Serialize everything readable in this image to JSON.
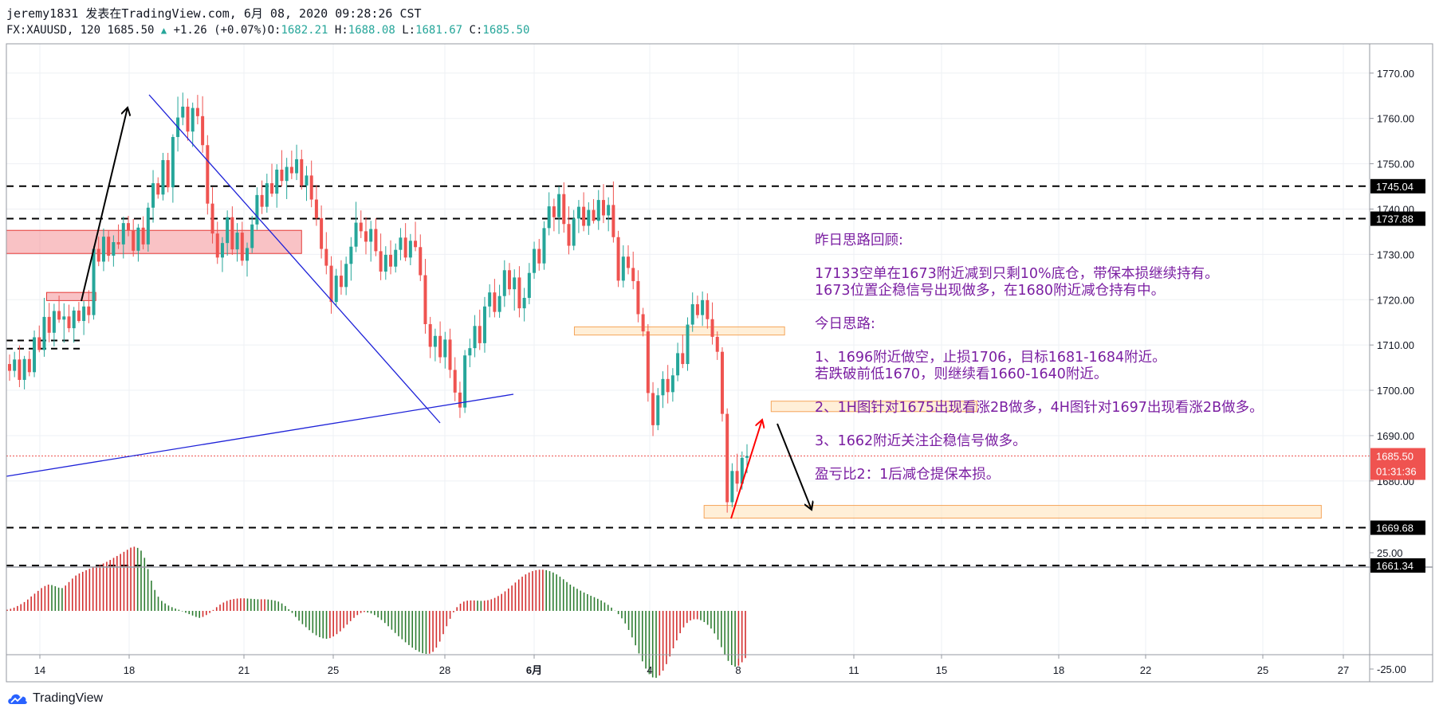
{
  "header": {
    "line1": "jeremy1831 发表在TradingView.com, 6月 08, 2020 09:28:26 CST",
    "symbol": "FX:XAUUSD, 120",
    "last": "1685.50",
    "change": "+1.26 (+0.07%)",
    "o_label": "O:",
    "o": "1682.21",
    "h_label": "H:",
    "h": "1688.08",
    "l_label": "L:",
    "l": "1681.67",
    "c_label": "C:",
    "c": "1685.50"
  },
  "branding": {
    "logo_text": "TradingView"
  },
  "notes": {
    "title": "昨日思路回顾:",
    "p1a": "17133空单在1673附近减到只剩10%底仓，带保本损继续持有。",
    "p1b": "1673位置企稳信号出现做多，在1680附近减仓持有中。",
    "today": "今日思路:",
    "i1a": "1、1696附近做空，止损1706，目标1681-1684附近。",
    "i1b": "若跌破前低1670，则继续看1660-1640附近。",
    "i2": "2、1H图针对1675出现看涨2B做多，4H图针对1697出现看涨2B做多。",
    "i3": "3、1662附近关注企稳信号做多。",
    "rr": "盈亏比2：1后减仓提保本损。"
  },
  "colors": {
    "up": "#26a69a",
    "down": "#ef5350",
    "osc_up": "#d32f2f",
    "osc_down": "#2e7d32",
    "line_blue": "#1e22d8",
    "notes": "#7b1fa2"
  },
  "chart_data": {
    "type": "candlestick",
    "symbol": "FX:XAUUSD",
    "interval": "120",
    "y_axis": {
      "ticks": [
        1770,
        1760,
        1750,
        1740,
        1730,
        1720,
        1710,
        1700,
        1690,
        1680
      ],
      "tick_labels": [
        "1770.00",
        "1760.00",
        "1750.00",
        "1740.00",
        "1730.00",
        "1720.00",
        "1710.00",
        "1700.00",
        "1690.00",
        "1680.00"
      ],
      "ylim": [
        1661,
        1778
      ]
    },
    "x_axis": {
      "ticks": [
        "14",
        "18",
        "21",
        "25",
        "28",
        "6月",
        "4",
        "8",
        "11",
        "15",
        "18",
        "22",
        "25",
        "27"
      ]
    },
    "horizontal_levels": [
      {
        "value": 1745.04,
        "label": "1745.04",
        "style": "dashed"
      },
      {
        "value": 1737.88,
        "label": "1737.88",
        "style": "dashed"
      },
      {
        "value": 1669.68,
        "label": "1669.68",
        "style": "dashed"
      },
      {
        "value": 1661.34,
        "label": "1661.34",
        "style": "dashed"
      },
      {
        "value": 1711.0,
        "label": "",
        "style": "dashed-short"
      },
      {
        "value": 1709.2,
        "label": "",
        "style": "dashed-short"
      }
    ],
    "current_price": {
      "value": 1685.5,
      "label": "1685.50",
      "countdown": "01:31:36"
    },
    "zones": [
      {
        "t0": 0,
        "t1": 66,
        "low": 1730.2,
        "high": 1735.3,
        "color": "red"
      },
      {
        "t0": 9,
        "t1": 20,
        "low": 1719.8,
        "high": 1721.6,
        "color": "red"
      },
      {
        "t0": 127,
        "t1": 174,
        "low": 1712.2,
        "high": 1714.0,
        "color": "orange"
      },
      {
        "t0": 171,
        "t1": 217,
        "low": 1695.3,
        "high": 1697.6,
        "color": "orange"
      },
      {
        "t0": 156,
        "t1": 294,
        "low": 1671.8,
        "high": 1674.6,
        "color": "orange"
      }
    ],
    "candles_ohlc": [
      [
        1705.8,
        1707.9,
        1702.1,
        1704.3
      ],
      [
        1704.3,
        1708.5,
        1702.9,
        1706.8
      ],
      [
        1706.8,
        1709.9,
        1700.7,
        1702.3
      ],
      [
        1702.3,
        1707.6,
        1700.2,
        1706.9
      ],
      [
        1706.9,
        1708.7,
        1703.1,
        1704.0
      ],
      [
        1704.0,
        1713.2,
        1702.9,
        1711.7
      ],
      [
        1711.7,
        1714.3,
        1708.4,
        1708.9
      ],
      [
        1708.9,
        1720.4,
        1707.4,
        1716.2
      ],
      [
        1716.2,
        1719.3,
        1710.6,
        1712.7
      ],
      [
        1712.7,
        1719.1,
        1709.7,
        1717.5
      ],
      [
        1717.5,
        1720.9,
        1714.9,
        1715.6
      ],
      [
        1715.6,
        1719.2,
        1710.5,
        1716.3
      ],
      [
        1716.3,
        1718.9,
        1712.8,
        1713.7
      ],
      [
        1713.7,
        1718.4,
        1710.5,
        1717.6
      ],
      [
        1717.6,
        1719.5,
        1714.9,
        1715.3
      ],
      [
        1715.3,
        1719.7,
        1712.2,
        1718.5
      ],
      [
        1718.5,
        1722.1,
        1714.8,
        1716.6
      ],
      [
        1716.6,
        1731.8,
        1715.6,
        1731.2
      ],
      [
        1731.2,
        1733.9,
        1727.4,
        1728.4
      ],
      [
        1728.4,
        1735.7,
        1726.3,
        1733.9
      ],
      [
        1733.9,
        1735.2,
        1728.4,
        1729.7
      ],
      [
        1729.7,
        1734.2,
        1727.3,
        1732.7
      ],
      [
        1732.7,
        1736.6,
        1731.2,
        1732.2
      ],
      [
        1732.2,
        1738.3,
        1729.1,
        1736.9
      ],
      [
        1736.9,
        1738.5,
        1734.0,
        1735.2
      ],
      [
        1735.2,
        1737.8,
        1729.5,
        1730.8
      ],
      [
        1730.8,
        1736.7,
        1728.4,
        1735.9
      ],
      [
        1735.9,
        1738.4,
        1731.1,
        1732.2
      ],
      [
        1732.2,
        1741.4,
        1730.6,
        1740.3
      ],
      [
        1740.3,
        1748.6,
        1737.0,
        1745.7
      ],
      [
        1745.7,
        1747.0,
        1742.3,
        1743.2
      ],
      [
        1743.2,
        1752.4,
        1741.9,
        1750.8
      ],
      [
        1750.8,
        1752.4,
        1743.7,
        1744.8
      ],
      [
        1744.8,
        1756.5,
        1741.4,
        1755.9
      ],
      [
        1755.9,
        1764.8,
        1752.7,
        1760.2
      ],
      [
        1760.2,
        1765.7,
        1758.5,
        1762.6
      ],
      [
        1762.6,
        1764.4,
        1755.1,
        1757.1
      ],
      [
        1757.1,
        1763.5,
        1753.7,
        1762.3
      ],
      [
        1762.3,
        1765.2,
        1758.7,
        1760.5
      ],
      [
        1760.5,
        1764.9,
        1752.4,
        1754.1
      ],
      [
        1754.1,
        1756.3,
        1738.8,
        1741.2
      ],
      [
        1741.2,
        1744.8,
        1732.4,
        1734.6
      ],
      [
        1734.6,
        1737.2,
        1727.9,
        1729.3
      ],
      [
        1729.3,
        1733.8,
        1726.1,
        1732.5
      ],
      [
        1732.5,
        1739.7,
        1729.7,
        1738.2
      ],
      [
        1738.2,
        1740.6,
        1729.9,
        1731.1
      ],
      [
        1731.1,
        1736.9,
        1728.4,
        1734.8
      ],
      [
        1734.8,
        1737.2,
        1727.5,
        1728.6
      ],
      [
        1728.6,
        1732.6,
        1725.1,
        1731.4
      ],
      [
        1731.4,
        1738.5,
        1730.3,
        1736.6
      ],
      [
        1736.6,
        1744.8,
        1735.4,
        1743.1
      ],
      [
        1743.1,
        1746.3,
        1738.9,
        1740.5
      ],
      [
        1740.5,
        1747.8,
        1739.2,
        1745.7
      ],
      [
        1745.7,
        1750.0,
        1742.7,
        1743.4
      ],
      [
        1743.4,
        1749.9,
        1740.3,
        1748.7
      ],
      [
        1748.7,
        1753.0,
        1745.0,
        1746.2
      ],
      [
        1746.2,
        1751.3,
        1742.2,
        1749.3
      ],
      [
        1749.3,
        1752.9,
        1746.6,
        1747.9
      ],
      [
        1747.9,
        1754.2,
        1746.4,
        1751.0
      ],
      [
        1751.0,
        1753.1,
        1744.3,
        1745.2
      ],
      [
        1745.2,
        1749.5,
        1741.8,
        1747.4
      ],
      [
        1747.4,
        1750.7,
        1740.4,
        1742.1
      ],
      [
        1742.1,
        1745.3,
        1736.3,
        1738.0
      ],
      [
        1738.0,
        1740.8,
        1729.1,
        1731.2
      ],
      [
        1731.2,
        1734.9,
        1725.6,
        1727.5
      ],
      [
        1727.5,
        1729.6,
        1716.9,
        1719.5
      ],
      [
        1719.5,
        1726.8,
        1718.5,
        1725.3
      ],
      [
        1725.3,
        1728.7,
        1721.1,
        1722.8
      ],
      [
        1722.8,
        1729.5,
        1721.0,
        1727.9
      ],
      [
        1727.9,
        1733.8,
        1724.2,
        1731.7
      ],
      [
        1731.7,
        1741.6,
        1730.5,
        1737.0
      ],
      [
        1737.0,
        1739.7,
        1733.6,
        1735.1
      ],
      [
        1735.1,
        1738.2,
        1730.0,
        1732.8
      ],
      [
        1732.8,
        1737.4,
        1728.4,
        1735.6
      ],
      [
        1735.6,
        1738.0,
        1729.6,
        1730.7
      ],
      [
        1730.7,
        1734.6,
        1724.3,
        1726.2
      ],
      [
        1726.2,
        1731.8,
        1724.4,
        1729.9
      ],
      [
        1729.9,
        1733.1,
        1725.6,
        1727.3
      ],
      [
        1727.3,
        1732.4,
        1726.0,
        1731.0
      ],
      [
        1731.0,
        1735.8,
        1728.7,
        1733.7
      ],
      [
        1733.7,
        1736.9,
        1728.5,
        1729.3
      ],
      [
        1729.3,
        1734.5,
        1727.6,
        1733.0
      ],
      [
        1733.0,
        1737.2,
        1730.7,
        1731.6
      ],
      [
        1731.6,
        1734.4,
        1724.1,
        1725.4
      ],
      [
        1725.4,
        1729.0,
        1712.5,
        1714.6
      ],
      [
        1714.6,
        1716.2,
        1707.1,
        1709.6
      ],
      [
        1709.6,
        1713.6,
        1706.4,
        1712.0
      ],
      [
        1712.0,
        1715.2,
        1706.0,
        1707.3
      ],
      [
        1707.3,
        1712.9,
        1704.8,
        1711.2
      ],
      [
        1711.2,
        1713.6,
        1702.7,
        1704.5
      ],
      [
        1704.5,
        1707.3,
        1697.6,
        1699.5
      ],
      [
        1699.5,
        1701.9,
        1693.9,
        1696.2
      ],
      [
        1696.2,
        1708.9,
        1695.0,
        1707.7
      ],
      [
        1707.7,
        1711.4,
        1705.1,
        1709.3
      ],
      [
        1709.3,
        1716.6,
        1707.3,
        1714.2
      ],
      [
        1714.2,
        1717.8,
        1708.9,
        1710.4
      ],
      [
        1710.4,
        1720.6,
        1708.3,
        1718.5
      ],
      [
        1718.5,
        1723.4,
        1716.1,
        1721.6
      ],
      [
        1721.6,
        1724.6,
        1716.1,
        1717.3
      ],
      [
        1717.3,
        1723.3,
        1716.0,
        1720.8
      ],
      [
        1720.8,
        1728.7,
        1718.4,
        1726.5
      ],
      [
        1726.5,
        1728.1,
        1721.0,
        1722.3
      ],
      [
        1722.3,
        1726.7,
        1717.6,
        1724.9
      ],
      [
        1724.9,
        1727.4,
        1716.1,
        1718.1
      ],
      [
        1718.1,
        1722.6,
        1715.2,
        1720.4
      ],
      [
        1720.4,
        1728.1,
        1719.0,
        1725.9
      ],
      [
        1725.9,
        1732.8,
        1724.6,
        1731.2
      ],
      [
        1731.2,
        1733.4,
        1726.4,
        1728.0
      ],
      [
        1728.0,
        1737.3,
        1726.6,
        1735.8
      ],
      [
        1735.8,
        1743.7,
        1734.2,
        1740.6
      ],
      [
        1740.6,
        1742.3,
        1735.1,
        1738.2
      ],
      [
        1738.2,
        1745.0,
        1734.5,
        1743.3
      ],
      [
        1743.3,
        1745.9,
        1734.8,
        1736.7
      ],
      [
        1736.7,
        1740.6,
        1730.0,
        1731.9
      ],
      [
        1731.9,
        1739.8,
        1730.9,
        1737.9
      ],
      [
        1737.9,
        1742.0,
        1734.7,
        1740.5
      ],
      [
        1740.5,
        1743.7,
        1735.1,
        1736.3
      ],
      [
        1736.3,
        1741.5,
        1734.3,
        1739.8
      ],
      [
        1739.8,
        1742.2,
        1736.8,
        1737.4
      ],
      [
        1737.4,
        1744.2,
        1735.4,
        1742.0
      ],
      [
        1742.0,
        1745.5,
        1736.9,
        1738.6
      ],
      [
        1738.6,
        1742.6,
        1735.1,
        1740.9
      ],
      [
        1740.9,
        1746.1,
        1732.6,
        1733.8
      ],
      [
        1733.8,
        1735.2,
        1722.8,
        1724.2
      ],
      [
        1724.2,
        1732.0,
        1722.7,
        1729.5
      ],
      [
        1729.5,
        1732.0,
        1725.6,
        1727.0
      ],
      [
        1727.0,
        1730.6,
        1722.3,
        1724.1
      ],
      [
        1724.1,
        1726.5,
        1715.0,
        1716.8
      ],
      [
        1716.8,
        1718.2,
        1711.9,
        1713.0
      ],
      [
        1713.0,
        1714.6,
        1697.5,
        1699.4
      ],
      [
        1699.4,
        1701.8,
        1689.9,
        1692.3
      ],
      [
        1692.3,
        1700.5,
        1691.2,
        1698.9
      ],
      [
        1698.9,
        1704.2,
        1696.1,
        1702.5
      ],
      [
        1702.5,
        1705.6,
        1697.1,
        1699.6
      ],
      [
        1699.6,
        1704.9,
        1697.5,
        1703.3
      ],
      [
        1703.3,
        1710.5,
        1702.0,
        1708.2
      ],
      [
        1708.2,
        1712.3,
        1704.9,
        1705.8
      ],
      [
        1705.8,
        1716.1,
        1704.3,
        1714.5
      ],
      [
        1714.5,
        1721.6,
        1712.9,
        1719.0
      ],
      [
        1719.0,
        1720.9,
        1715.9,
        1716.6
      ],
      [
        1716.6,
        1721.8,
        1714.2,
        1719.9
      ],
      [
        1719.9,
        1721.4,
        1713.6,
        1715.7
      ],
      [
        1715.7,
        1719.4,
        1710.1,
        1711.8
      ],
      [
        1711.8,
        1713.0,
        1706.7,
        1708.5
      ],
      [
        1708.5,
        1709.5,
        1693.1,
        1694.8
      ],
      [
        1694.8,
        1696.0,
        1673.0,
        1675.3
      ],
      [
        1675.3,
        1683.9,
        1674.2,
        1682.2
      ],
      [
        1682.2,
        1686.0,
        1677.6,
        1679.4
      ],
      [
        1679.4,
        1686.5,
        1678.1,
        1685.1
      ],
      [
        1685.1,
        1688.1,
        1681.7,
        1685.5
      ]
    ],
    "oscillator": {
      "ylim": [
        -30,
        30
      ],
      "tick_labels": [
        "25.00",
        "-25.00"
      ],
      "values": [
        0.5,
        0.9,
        1.4,
        2.1,
        2.9,
        3.8,
        4.9,
        6.2,
        7.4,
        8.6,
        9.8,
        10.7,
        11.3,
        11.1,
        10.6,
        10.0,
        9.8,
        10.9,
        12.4,
        13.9,
        15.2,
        16.1,
        16.8,
        17.5,
        18.1,
        18.7,
        19.3,
        19.8,
        20.4,
        21.1,
        21.9,
        22.8,
        23.6,
        24.5,
        25.4,
        26.3,
        27.2,
        27.6,
        27.1,
        25.9,
        22.8,
        18.0,
        13.0,
        9.0,
        6.1,
        4.3,
        3.2,
        2.3,
        1.6,
        1.0,
        0.5,
        -0.2,
        -0.8,
        -1.4,
        -2.0,
        -2.6,
        -3.0,
        -2.6,
        -1.8,
        -0.9,
        0.4,
        1.6,
        2.7,
        3.6,
        4.3,
        4.8,
        5.1,
        5.3,
        5.4,
        5.4,
        5.3,
        5.2,
        5.1,
        5.0,
        5.0,
        5.0,
        4.9,
        4.7,
        4.4,
        4.0,
        3.2,
        2.1,
        0.7,
        -0.9,
        -2.6,
        -4.2,
        -5.7,
        -7.0,
        -8.3,
        -9.5,
        -10.5,
        -11.3,
        -11.8,
        -12.0,
        -11.7,
        -11.0,
        -10.0,
        -8.8,
        -7.4,
        -5.9,
        -4.4,
        -3.0,
        -1.8,
        -0.9,
        -0.5,
        -0.7,
        -1.1,
        -1.8,
        -2.8,
        -3.9,
        -5.2,
        -6.6,
        -8.1,
        -9.5,
        -10.9,
        -12.2,
        -13.5,
        -14.7,
        -15.8,
        -16.8,
        -17.6,
        -18.2,
        -18.5,
        -18.4,
        -17.6,
        -15.8,
        -13.2,
        -10.0,
        -6.6,
        -3.4,
        -0.6,
        1.6,
        3.1,
        4.0,
        4.4,
        4.5,
        4.5,
        4.4,
        4.3,
        4.4,
        4.6,
        5.0,
        5.6,
        6.4,
        7.3,
        8.4,
        9.6,
        10.9,
        12.2,
        13.5,
        14.7,
        15.7,
        16.5,
        17.1,
        17.5,
        17.7,
        17.7,
        17.5,
        17.1,
        16.5,
        15.7,
        14.7,
        13.6,
        12.4,
        11.3,
        10.4,
        9.5,
        8.7,
        7.9,
        7.2,
        6.5,
        5.9,
        5.2,
        4.5,
        3.6,
        2.6,
        1.4,
        0.1,
        -1.4,
        -3.2,
        -5.4,
        -8.2,
        -11.4,
        -14.8,
        -18.3,
        -21.7,
        -24.8,
        -27.2,
        -28.6,
        -28.8,
        -27.8,
        -25.7,
        -22.9,
        -19.6,
        -16.1,
        -12.7,
        -9.6,
        -7.1,
        -5.2,
        -4.1,
        -3.6,
        -3.6,
        -4.0,
        -4.8,
        -6.0,
        -7.6,
        -9.7,
        -12.4,
        -15.6,
        -18.9,
        -21.5,
        -23.3,
        -24.0,
        -23.6,
        -22.1,
        -20.3
      ]
    }
  }
}
